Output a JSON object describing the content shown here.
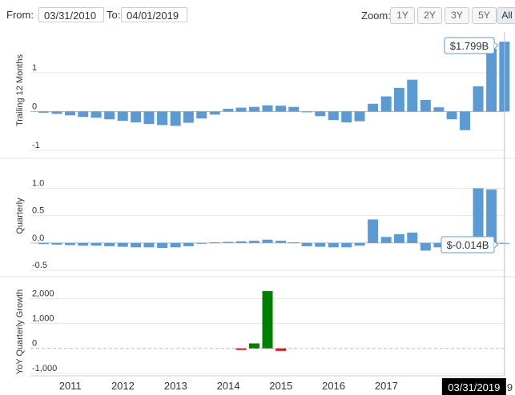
{
  "range": {
    "from_label": "From:",
    "from_value": "03/31/2010",
    "to_label": "To:",
    "to_value": "04/01/2019"
  },
  "zoom": {
    "label": "Zoom:",
    "buttons": [
      "1Y",
      "2Y",
      "3Y",
      "5Y",
      "All"
    ],
    "active": "All"
  },
  "colors": {
    "bar_blue": "#5b9bd5",
    "bar_green": "#008000",
    "bar_red": "#e41a1c",
    "gridline": "#e6e6e6",
    "crosshair": "#c0c0c0"
  },
  "chart_data": [
    {
      "type": "bar",
      "title": "Trailing 12 Months",
      "ylim": [
        -1.0,
        2.05
      ],
      "yticks": [
        {
          "value": 1,
          "label": "1"
        },
        {
          "value": 0,
          "label": "0"
        },
        {
          "value": -1,
          "label": "-1"
        }
      ],
      "values": [
        -0.03,
        -0.06,
        -0.1,
        -0.14,
        -0.16,
        -0.2,
        -0.24,
        -0.28,
        -0.32,
        -0.35,
        -0.37,
        -0.29,
        -0.18,
        -0.08,
        0.07,
        0.1,
        0.12,
        0.16,
        0.15,
        0.12,
        -0.02,
        -0.12,
        -0.22,
        -0.28,
        -0.25,
        0.2,
        0.39,
        0.61,
        0.82,
        0.3,
        0.11,
        -0.2,
        -0.48,
        0.65,
        1.62,
        1.799
      ],
      "tooltip": "$1.799B"
    },
    {
      "type": "bar",
      "title": "Quarterly",
      "ylim": [
        -0.5,
        1.3
      ],
      "yticks": [
        {
          "value": 1.0,
          "label": "1.0"
        },
        {
          "value": 0.5,
          "label": "0.5"
        },
        {
          "value": 0.0,
          "label": "0.0"
        },
        {
          "value": -0.5,
          "label": "-0.5"
        }
      ],
      "values": [
        -0.02,
        -0.03,
        -0.04,
        -0.05,
        -0.05,
        -0.06,
        -0.07,
        -0.08,
        -0.08,
        -0.09,
        -0.08,
        -0.06,
        -0.01,
        0.01,
        0.02,
        0.03,
        0.04,
        0.06,
        0.04,
        0.01,
        -0.06,
        -0.07,
        -0.08,
        -0.08,
        -0.05,
        0.43,
        0.11,
        0.16,
        0.19,
        -0.14,
        -0.08,
        -0.06,
        -0.04,
        1.0,
        0.98,
        -0.014
      ],
      "tooltip": "$-0.014B"
    },
    {
      "type": "bar",
      "title": "YoY Quarterly Growth",
      "ylim": [
        -1100,
        2750
      ],
      "yticks": [
        {
          "value": 2000,
          "label": "2,000"
        },
        {
          "value": 1000,
          "label": "1,000"
        },
        {
          "value": 0,
          "label": "0"
        },
        {
          "value": -1000,
          "label": "-1,000"
        }
      ],
      "x_dates": [
        "2014-03-31",
        "2014-06-30",
        "2014-09-30",
        "2014-12-31"
      ],
      "values": [
        -50,
        200,
        2300,
        -100
      ]
    }
  ],
  "x_axis": {
    "start_date": "2010-03-31",
    "end_date": "2019-04-01",
    "year_labels": [
      "2011",
      "2012",
      "2013",
      "2014",
      "2015",
      "2016",
      "2017"
    ],
    "highlight_label": "03/31/2019",
    "right_edge_label": "9"
  }
}
